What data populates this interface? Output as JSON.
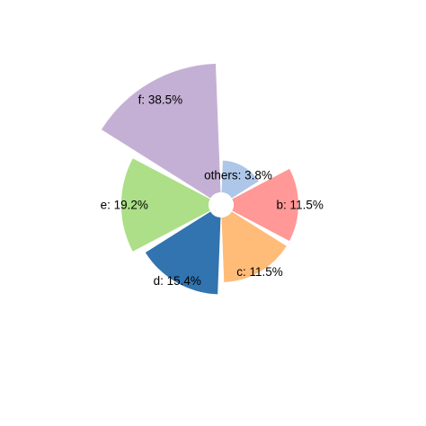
{
  "chart_data": {
    "type": "pie",
    "variant": "polar-area",
    "title": "",
    "slices": [
      {
        "category": "others",
        "value": 3.8,
        "label": "others: 3.8%",
        "color": "#aec7e8"
      },
      {
        "category": "b",
        "value": 11.5,
        "label": "b: 11.5%",
        "color": "#ff9896"
      },
      {
        "category": "c",
        "value": 11.5,
        "label": "c: 11.5%",
        "color": "#ffbb78"
      },
      {
        "category": "d",
        "value": 15.4,
        "label": "d: 15.4%",
        "color": "#3174b0"
      },
      {
        "category": "e",
        "value": 19.2,
        "label": "e: 19.2%",
        "color": "#acdf87"
      },
      {
        "category": "f",
        "value": 38.5,
        "label": "f: 38.5%",
        "color": "#c5b0d5"
      }
    ],
    "unit": "%",
    "legend": "none",
    "grid": false,
    "background": "#ffffff"
  }
}
